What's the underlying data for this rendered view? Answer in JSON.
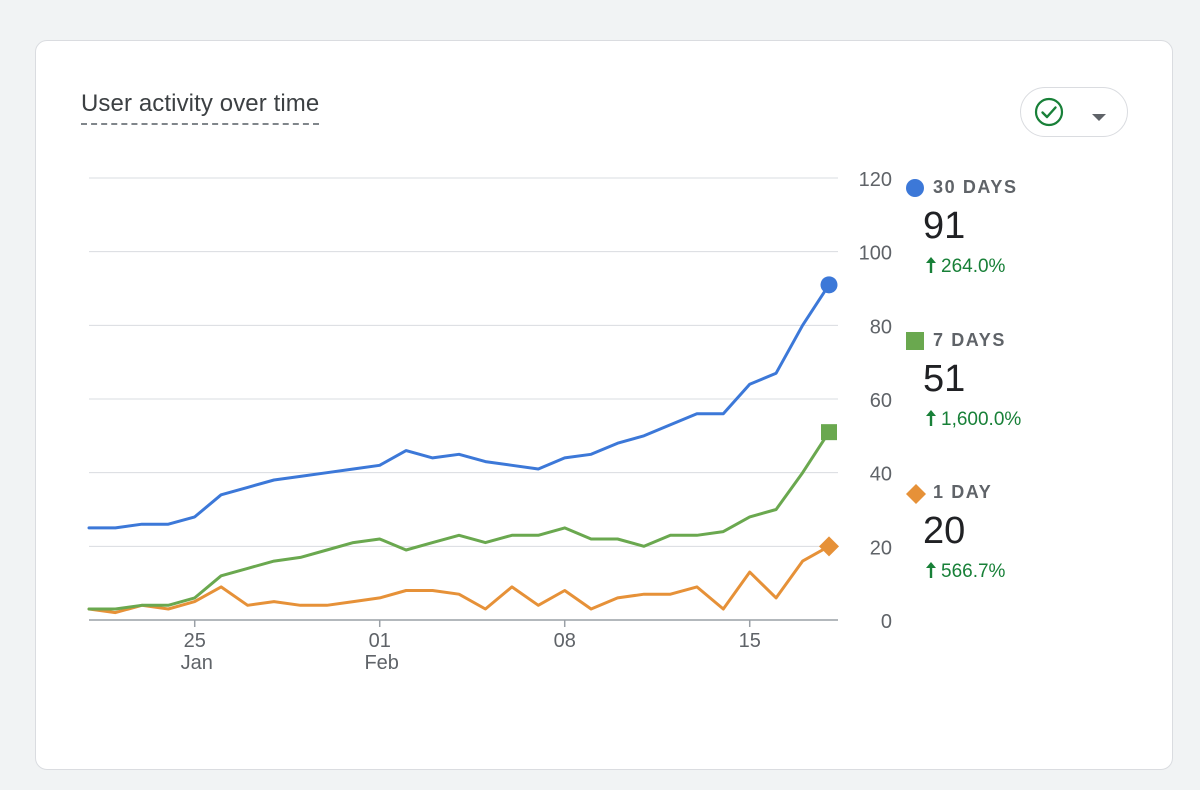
{
  "card": {
    "title": "User activity over time"
  },
  "compare_button": {
    "icon": "check-circle-icon",
    "dropdown_icon": "caret-down-icon",
    "color": "#188038"
  },
  "legend": [
    {
      "key": "30d",
      "label": "30 DAYS",
      "value": "91",
      "change": "264.0%",
      "marker": "circle",
      "color": "#3c78d8"
    },
    {
      "key": "7d",
      "label": "7 DAYS",
      "value": "51",
      "change": "1,600.0%",
      "marker": "square",
      "color": "#6aa84f"
    },
    {
      "key": "1d",
      "label": "1 DAY",
      "value": "20",
      "change": "566.7%",
      "marker": "diamond",
      "color": "#e69138"
    }
  ],
  "chart_data": {
    "type": "line",
    "title": "User activity over time",
    "x": [
      "Jan 21",
      "Jan 22",
      "Jan 23",
      "Jan 24",
      "Jan 25",
      "Jan 26",
      "Jan 27",
      "Jan 28",
      "Jan 29",
      "Jan 30",
      "Jan 31",
      "Feb 01",
      "Feb 02",
      "Feb 03",
      "Feb 04",
      "Feb 05",
      "Feb 06",
      "Feb 07",
      "Feb 08",
      "Feb 09",
      "Feb 10",
      "Feb 11",
      "Feb 12",
      "Feb 13",
      "Feb 14",
      "Feb 15",
      "Feb 16",
      "Feb 17",
      "Feb 18"
    ],
    "series": [
      {
        "name": "30 DAYS",
        "color": "#3c78d8",
        "marker": "circle",
        "values": [
          25,
          25,
          26,
          26,
          28,
          34,
          36,
          38,
          39,
          40,
          41,
          42,
          46,
          44,
          45,
          43,
          42,
          41,
          44,
          45,
          48,
          50,
          53,
          56,
          56,
          64,
          67,
          80,
          91
        ]
      },
      {
        "name": "7 DAYS",
        "color": "#6aa84f",
        "marker": "square",
        "values": [
          3,
          3,
          4,
          4,
          6,
          12,
          14,
          16,
          17,
          19,
          21,
          22,
          19,
          21,
          23,
          21,
          23,
          23,
          25,
          22,
          22,
          20,
          23,
          23,
          24,
          28,
          30,
          40,
          51
        ]
      },
      {
        "name": "1 DAY",
        "color": "#e69138",
        "marker": "diamond",
        "values": [
          3,
          2,
          4,
          3,
          5,
          9,
          4,
          5,
          4,
          4,
          5,
          6,
          8,
          8,
          7,
          3,
          9,
          4,
          8,
          3,
          6,
          7,
          7,
          9,
          3,
          13,
          6,
          16,
          20
        ]
      }
    ],
    "x_ticks": [
      {
        "day": "25",
        "month": "Jan",
        "index": 4
      },
      {
        "day": "01",
        "month": "Feb",
        "index": 11
      },
      {
        "day": "08",
        "month": "",
        "index": 18
      },
      {
        "day": "15",
        "month": "",
        "index": 25
      }
    ],
    "y_ticks": [
      "0",
      "20",
      "40",
      "60",
      "80",
      "100",
      "120"
    ],
    "ylim": [
      0,
      120
    ],
    "y_axis_side": "right",
    "grid": true,
    "legend_position": "right"
  }
}
